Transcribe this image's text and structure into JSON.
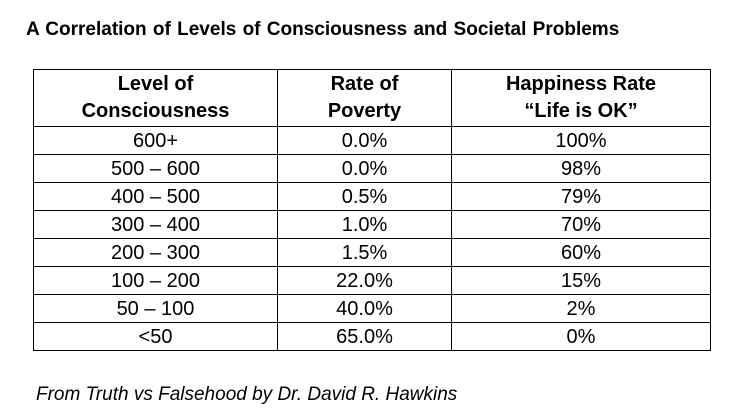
{
  "title": "A Correlation  of Levels of Consciousness  and Societal  Problems",
  "table": {
    "headers": [
      {
        "line1": "Level of",
        "line2": "Consciousness"
      },
      {
        "line1": "Rate of",
        "line2": "Poverty"
      },
      {
        "line1": "Happiness Rate",
        "line2": "“Life is OK”"
      }
    ],
    "rows": [
      {
        "level": "600+",
        "poverty": "0.0%",
        "happiness": "100%"
      },
      {
        "level": "500 – 600",
        "poverty": "0.0%",
        "happiness": "98%"
      },
      {
        "level": "400 – 500",
        "poverty": "0.5%",
        "happiness": "79%"
      },
      {
        "level": "300 – 400",
        "poverty": "1.0%",
        "happiness": "70%"
      },
      {
        "level": "200 – 300",
        "poverty": "1.5%",
        "happiness": "60%"
      },
      {
        "level": "100 – 200",
        "poverty": "22.0%",
        "happiness": "15%"
      },
      {
        "level": "50 – 100",
        "poverty": "40.0%",
        "happiness": "2%"
      },
      {
        "level": "<50",
        "poverty": "65.0%",
        "happiness": "0%"
      }
    ]
  },
  "footnote": "From Truth vs Falsehood by Dr. David R. Hawkins"
}
